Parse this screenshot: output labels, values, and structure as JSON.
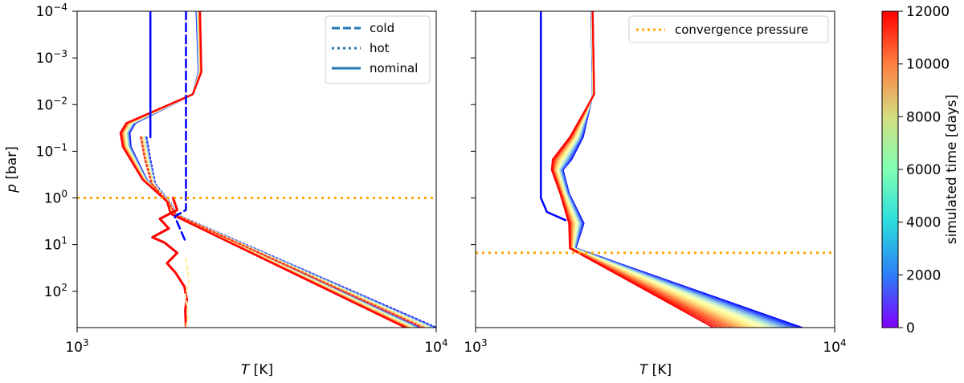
{
  "chart_data": [
    {
      "type": "line",
      "panel": "left",
      "xlabel_var": "T",
      "xlabel_unit": " [K]",
      "ylabel_var": "p",
      "ylabel_unit": " [bar]",
      "xscale": "log",
      "yscale": "log",
      "xlim": [
        1000,
        10000
      ],
      "ylim": [
        600,
        0.0001
      ],
      "xticks": [
        {
          "value": 1000,
          "base": "10",
          "exp": "3"
        },
        {
          "value": 10000,
          "base": "10",
          "exp": "4"
        }
      ],
      "yticks": [
        {
          "value": 0.0001,
          "base": "10",
          "exp": "−4"
        },
        {
          "value": 0.001,
          "base": "10",
          "exp": "−3"
        },
        {
          "value": 0.01,
          "base": "10",
          "exp": "−2"
        },
        {
          "value": 0.1,
          "base": "10",
          "exp": "−1"
        },
        {
          "value": 1,
          "base": "10",
          "exp": "0"
        },
        {
          "value": 10,
          "base": "10",
          "exp": "1"
        },
        {
          "value": 100,
          "base": "10",
          "exp": "2"
        }
      ],
      "convergence_pressure": 1.0,
      "legend": {
        "location": "upper right",
        "entries": [
          {
            "label": "cold",
            "style": "dashed"
          },
          {
            "label": "hot",
            "style": "dotted"
          },
          {
            "label": "nominal",
            "style": "solid"
          }
        ]
      },
      "series_time_days": [
        0,
        2000,
        4000,
        6000,
        8000,
        10000,
        12000
      ]
    },
    {
      "type": "line",
      "panel": "right",
      "xlabel_var": "T",
      "xlabel_unit": " [K]",
      "xscale": "log",
      "yscale": "log",
      "xlim": [
        1000,
        10000
      ],
      "ylim": [
        600,
        0.0001
      ],
      "xticks": [
        {
          "value": 1000,
          "base": "10",
          "exp": "3"
        },
        {
          "value": 10000,
          "base": "10",
          "exp": "4"
        }
      ],
      "convergence_pressure": 15.0,
      "legend": {
        "location": "upper right",
        "entries": [
          {
            "label": "convergence pressure",
            "style": "dotted"
          }
        ]
      },
      "series_time_days": [
        0,
        2000,
        4000,
        6000,
        8000,
        10000,
        12000
      ]
    }
  ],
  "colorbar": {
    "label": "simulated time [days]",
    "min": 0,
    "max": 12000,
    "ticks": [
      "0",
      "2000",
      "4000",
      "6000",
      "8000",
      "10000",
      "12000"
    ],
    "colormap": "rainbow"
  },
  "colors": {
    "convergence": "#FFA500",
    "legend_line": "#1f77b4"
  }
}
